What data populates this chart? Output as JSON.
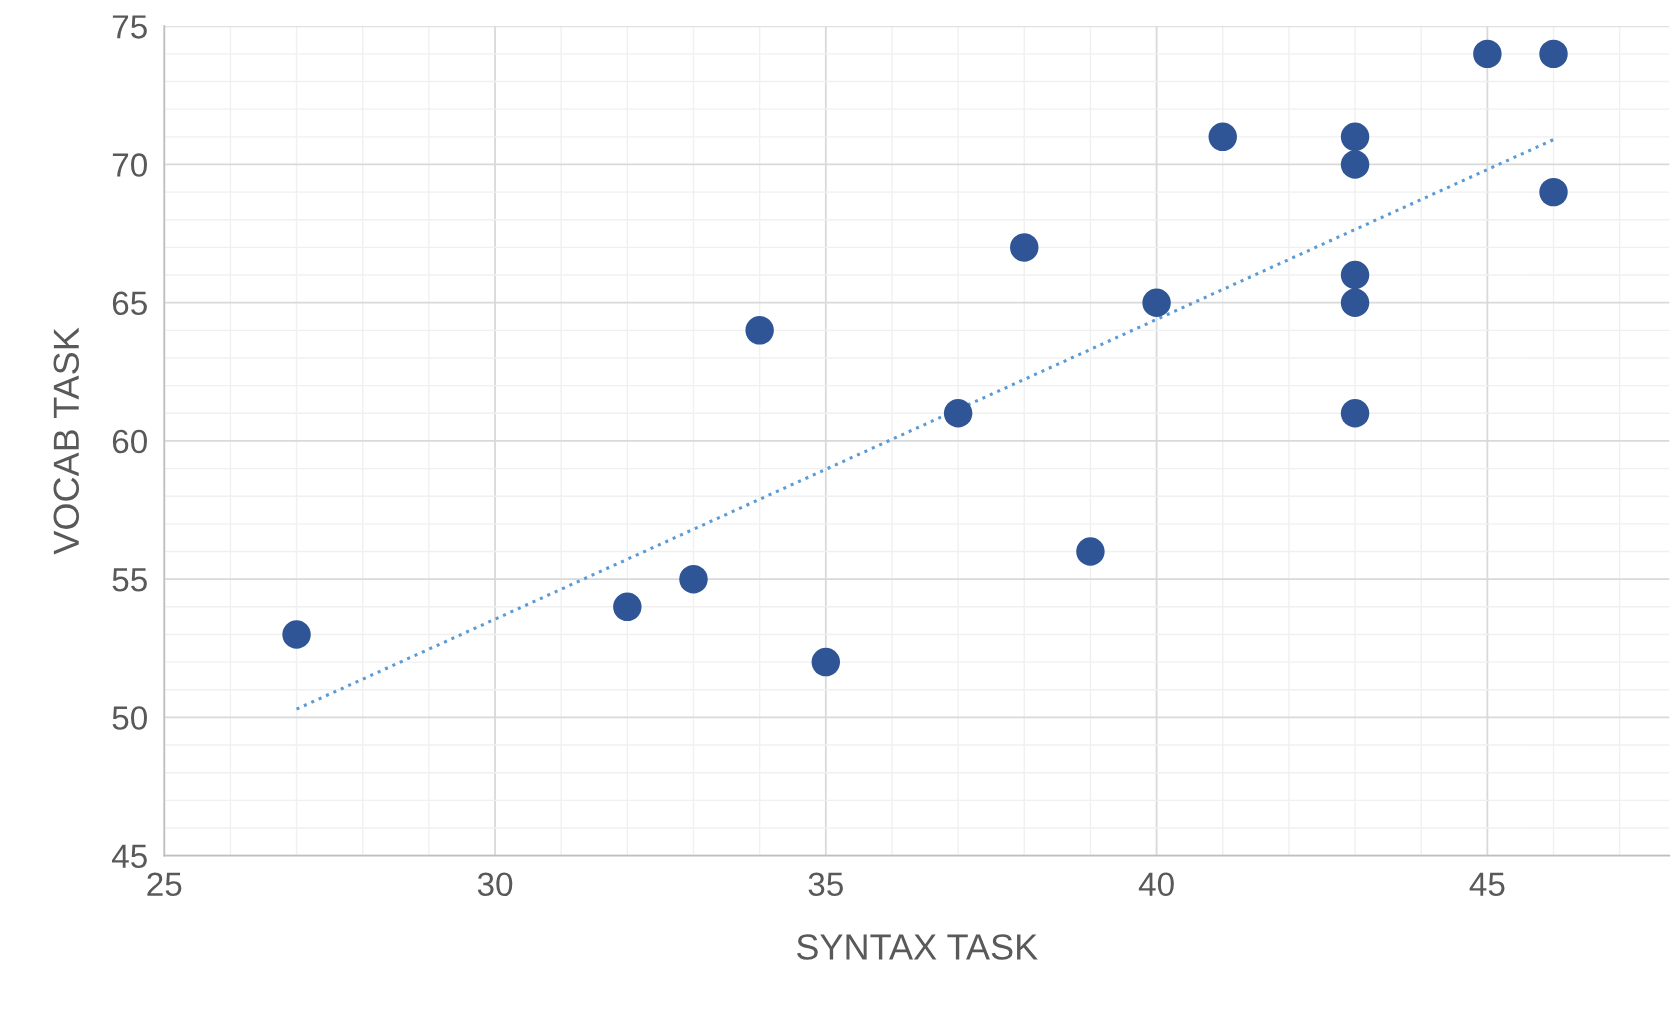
{
  "chart_data": {
    "type": "scatter",
    "xlabel": "SYNTAX TASK",
    "ylabel": "VOCAB TASK",
    "xlim": [
      25,
      47.75
    ],
    "ylim": [
      45,
      75
    ],
    "xticks": [
      25,
      30,
      35,
      40,
      45
    ],
    "yticks": [
      45,
      50,
      55,
      60,
      65,
      70,
      75
    ],
    "grid": true,
    "marker": "circle",
    "series": [
      {
        "color": "#2f5597",
        "x": [
          27,
          32,
          33,
          34,
          35,
          37,
          38,
          39,
          40,
          41,
          43,
          43,
          43,
          43,
          43,
          45,
          46,
          46
        ],
        "values": [
          53,
          54,
          55,
          64,
          52,
          61,
          67,
          56,
          65,
          71,
          71,
          70,
          66,
          65,
          61,
          74,
          74,
          69
        ]
      },
      {
        "type": "line",
        "color": "#5b9bd5",
        "line_style": "dotted",
        "marker": "none",
        "x": [
          27,
          46
        ],
        "values": [
          50.3,
          70.9
        ]
      }
    ]
  }
}
